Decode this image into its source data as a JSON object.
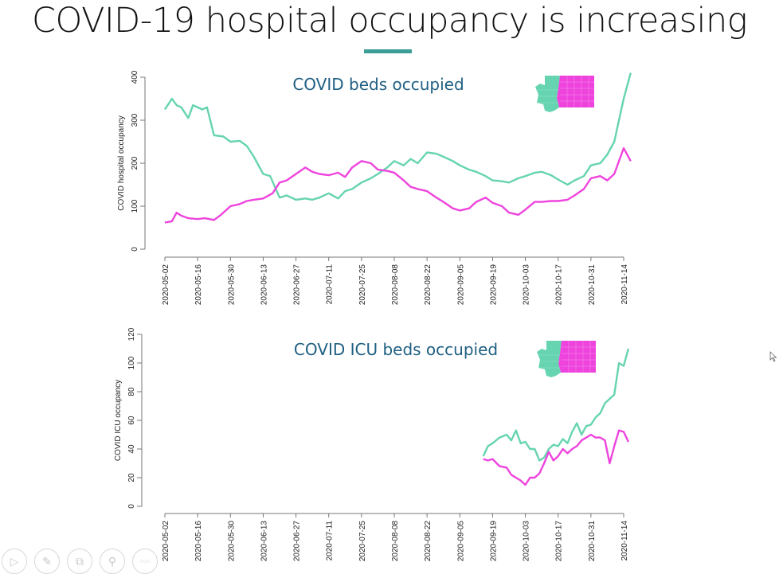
{
  "slide": {
    "title": "COVID-19 hospital occupancy is increasing",
    "accent_color": "#3a9e96"
  },
  "colors": {
    "west": "#66d4b0",
    "east": "#ee44dd",
    "title_text": "#1f5f82"
  },
  "toolbar": {
    "items": [
      {
        "name": "play-icon",
        "glyph": "▷"
      },
      {
        "name": "pen-icon",
        "glyph": "✎"
      },
      {
        "name": "slides-icon",
        "glyph": "⧉"
      },
      {
        "name": "zoom-icon",
        "glyph": "⚲"
      },
      {
        "name": "more-icon",
        "glyph": "○○○"
      }
    ]
  },
  "chart_data": [
    {
      "type": "line",
      "title": "COVID beds occupied",
      "xlabel": "",
      "ylabel": "COVID hospital occupancy",
      "ylim": [
        0,
        400
      ],
      "yticks": [
        0,
        100,
        200,
        300,
        400
      ],
      "x_start": "2020-05-02",
      "xlim_days": [
        0,
        196
      ],
      "xtick_labels": [
        "2020-05-02",
        "2020-05-16",
        "2020-05-30",
        "2020-06-13",
        "2020-06-27",
        "2020-07-11",
        "2020-07-25",
        "2020-08-08",
        "2020-08-22",
        "2020-09-05",
        "2020-09-19",
        "2020-10-03",
        "2020-10-17",
        "2020-10-31",
        "2020-11-14"
      ],
      "legend": "map inset top-right (western WA teal, eastern WA magenta)",
      "grid": false,
      "series": [
        {
          "name": "Western Washington",
          "color": "#66d4b0",
          "x_days": [
            0,
            3,
            5,
            7,
            10,
            12,
            16,
            18,
            21,
            25,
            28,
            32,
            35,
            38,
            42,
            45,
            49,
            52,
            56,
            60,
            63,
            66,
            70,
            74,
            77,
            80,
            84,
            88,
            91,
            95,
            98,
            102,
            105,
            108,
            112,
            116,
            119,
            123,
            126,
            130,
            133,
            137,
            140,
            144,
            147,
            151,
            154,
            158,
            161,
            165,
            168,
            172,
            175,
            179,
            182,
            186,
            189,
            192,
            196,
            199
          ],
          "values": [
            325,
            350,
            335,
            330,
            305,
            335,
            325,
            330,
            265,
            262,
            250,
            252,
            240,
            215,
            175,
            170,
            120,
            125,
            115,
            118,
            115,
            120,
            130,
            118,
            135,
            140,
            155,
            165,
            175,
            190,
            205,
            195,
            210,
            200,
            225,
            222,
            215,
            205,
            195,
            185,
            180,
            170,
            160,
            158,
            155,
            165,
            170,
            178,
            180,
            172,
            162,
            150,
            160,
            170,
            195,
            200,
            220,
            250,
            350,
            410
          ]
        },
        {
          "name": "Eastern Washington",
          "color": "#ee44dd",
          "x_days": [
            0,
            3,
            5,
            7,
            10,
            14,
            17,
            21,
            24,
            28,
            32,
            35,
            38,
            42,
            46,
            49,
            52,
            56,
            60,
            63,
            66,
            70,
            74,
            77,
            80,
            84,
            88,
            91,
            95,
            98,
            102,
            105,
            108,
            112,
            116,
            119,
            123,
            126,
            130,
            133,
            137,
            140,
            144,
            147,
            151,
            154,
            158,
            161,
            165,
            168,
            172,
            175,
            179,
            182,
            186,
            189,
            192,
            196,
            199
          ],
          "values": [
            62,
            65,
            85,
            78,
            72,
            70,
            72,
            68,
            80,
            100,
            105,
            112,
            115,
            118,
            130,
            155,
            160,
            175,
            190,
            180,
            175,
            172,
            178,
            168,
            190,
            205,
            200,
            185,
            182,
            178,
            160,
            145,
            140,
            135,
            120,
            110,
            95,
            90,
            95,
            110,
            120,
            108,
            100,
            85,
            80,
            92,
            110,
            110,
            112,
            112,
            115,
            125,
            140,
            165,
            170,
            160,
            175,
            235,
            205
          ]
        }
      ]
    },
    {
      "type": "line",
      "title": "COVID ICU beds occupied",
      "xlabel": "",
      "ylabel": "COVID ICU occupancy",
      "ylim": [
        0,
        120
      ],
      "yticks": [
        0,
        20,
        40,
        60,
        80,
        100,
        120
      ],
      "x_start": "2020-05-02",
      "xlim_days": [
        0,
        196
      ],
      "xtick_labels": [
        "2020-05-02",
        "2020-05-16",
        "2020-05-30",
        "2020-06-13",
        "2020-06-27",
        "2020-07-11",
        "2020-07-25",
        "2020-08-08",
        "2020-08-22",
        "2020-09-05",
        "2020-09-19",
        "2020-10-03",
        "2020-10-17",
        "2020-10-31",
        "2020-11-14"
      ],
      "legend": "map inset top-right (western WA teal, eastern WA magenta)",
      "grid": false,
      "series": [
        {
          "name": "Western Washington",
          "color": "#66d4b0",
          "x_days": [
            136,
            138,
            140,
            143,
            146,
            148,
            150,
            152,
            154,
            156,
            158,
            160,
            162,
            164,
            166,
            168,
            170,
            172,
            174,
            176,
            178,
            180,
            182,
            184,
            186,
            188,
            190,
            192,
            194,
            196,
            198
          ],
          "values": [
            35,
            42,
            44,
            48,
            50,
            46,
            53,
            44,
            45,
            40,
            40,
            32,
            34,
            40,
            43,
            42,
            47,
            44,
            52,
            58,
            50,
            56,
            57,
            62,
            65,
            72,
            75,
            78,
            100,
            98,
            110
          ]
        },
        {
          "name": "Eastern Washington",
          "color": "#ee44dd",
          "x_days": [
            136,
            138,
            140,
            143,
            146,
            148,
            150,
            152,
            154,
            156,
            158,
            160,
            162,
            164,
            166,
            168,
            170,
            172,
            174,
            176,
            178,
            180,
            182,
            184,
            186,
            188,
            190,
            192,
            194,
            196,
            198
          ],
          "values": [
            33,
            32,
            33,
            28,
            27,
            22,
            20,
            18,
            15,
            20,
            20,
            23,
            30,
            38,
            32,
            35,
            40,
            37,
            40,
            42,
            46,
            48,
            50,
            48,
            48,
            46,
            30,
            42,
            53,
            52,
            45
          ]
        }
      ]
    }
  ]
}
